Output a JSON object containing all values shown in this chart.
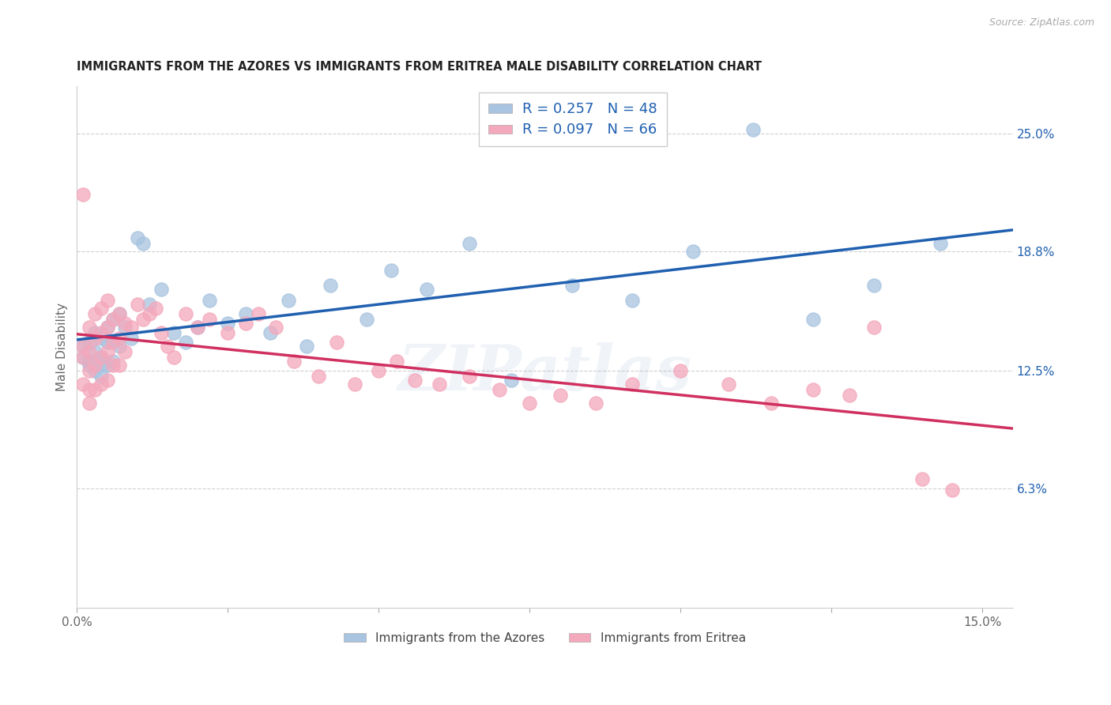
{
  "title": "IMMIGRANTS FROM THE AZORES VS IMMIGRANTS FROM ERITREA MALE DISABILITY CORRELATION CHART",
  "source": "Source: ZipAtlas.com",
  "ylabel": "Male Disability",
  "xlim": [
    0.0,
    0.155
  ],
  "ylim": [
    0.0,
    0.275
  ],
  "xticks": [
    0.0,
    0.025,
    0.05,
    0.075,
    0.1,
    0.125,
    0.15
  ],
  "xticklabels": [
    "0.0%",
    "",
    "",
    "",
    "",
    "",
    "15.0%"
  ],
  "yticks_right": [
    0.063,
    0.125,
    0.188,
    0.25
  ],
  "ytick_right_labels": [
    "6.3%",
    "12.5%",
    "18.8%",
    "25.0%"
  ],
  "azores_color": "#a8c4e0",
  "eritrea_color": "#f4a8bc",
  "azores_line_color": "#2060b0",
  "eritrea_line_color": "#d03060",
  "legend_R_color": "#2060b0",
  "legend_R_azores": "0.257",
  "legend_N_azores": "48",
  "legend_R_eritrea": "0.097",
  "legend_N_eritrea": "66",
  "watermark": "ZIPatlas",
  "azores_x": [
    0.001,
    0.001,
    0.002,
    0.002,
    0.002,
    0.003,
    0.003,
    0.003,
    0.004,
    0.004,
    0.004,
    0.004,
    0.005,
    0.005,
    0.005,
    0.006,
    0.006,
    0.006,
    0.007,
    0.007,
    0.008,
    0.009,
    0.01,
    0.011,
    0.012,
    0.014,
    0.016,
    0.018,
    0.02,
    0.022,
    0.025,
    0.028,
    0.032,
    0.035,
    0.038,
    0.042,
    0.048,
    0.052,
    0.058,
    0.065,
    0.072,
    0.082,
    0.092,
    0.102,
    0.112,
    0.122,
    0.132,
    0.143
  ],
  "azores_y": [
    0.132,
    0.138,
    0.13,
    0.14,
    0.128,
    0.145,
    0.135,
    0.125,
    0.142,
    0.132,
    0.128,
    0.122,
    0.148,
    0.14,
    0.128,
    0.152,
    0.14,
    0.13,
    0.155,
    0.138,
    0.148,
    0.142,
    0.195,
    0.192,
    0.16,
    0.168,
    0.145,
    0.14,
    0.148,
    0.162,
    0.15,
    0.155,
    0.145,
    0.162,
    0.138,
    0.17,
    0.152,
    0.178,
    0.168,
    0.192,
    0.12,
    0.17,
    0.162,
    0.188,
    0.252,
    0.152,
    0.17,
    0.192
  ],
  "eritrea_x": [
    0.001,
    0.001,
    0.001,
    0.001,
    0.002,
    0.002,
    0.002,
    0.002,
    0.002,
    0.003,
    0.003,
    0.003,
    0.003,
    0.004,
    0.004,
    0.004,
    0.004,
    0.005,
    0.005,
    0.005,
    0.005,
    0.006,
    0.006,
    0.006,
    0.007,
    0.007,
    0.007,
    0.008,
    0.008,
    0.009,
    0.01,
    0.011,
    0.012,
    0.013,
    0.014,
    0.015,
    0.016,
    0.018,
    0.02,
    0.022,
    0.025,
    0.028,
    0.03,
    0.033,
    0.036,
    0.04,
    0.043,
    0.046,
    0.05,
    0.053,
    0.056,
    0.06,
    0.065,
    0.07,
    0.075,
    0.08,
    0.086,
    0.092,
    0.1,
    0.108,
    0.115,
    0.122,
    0.128,
    0.132,
    0.14,
    0.145
  ],
  "eritrea_y": [
    0.218,
    0.138,
    0.132,
    0.118,
    0.148,
    0.135,
    0.125,
    0.115,
    0.108,
    0.155,
    0.142,
    0.128,
    0.115,
    0.158,
    0.145,
    0.132,
    0.118,
    0.162,
    0.148,
    0.135,
    0.12,
    0.152,
    0.14,
    0.128,
    0.155,
    0.142,
    0.128,
    0.15,
    0.135,
    0.148,
    0.16,
    0.152,
    0.155,
    0.158,
    0.145,
    0.138,
    0.132,
    0.155,
    0.148,
    0.152,
    0.145,
    0.15,
    0.155,
    0.148,
    0.13,
    0.122,
    0.14,
    0.118,
    0.125,
    0.13,
    0.12,
    0.118,
    0.122,
    0.115,
    0.108,
    0.112,
    0.108,
    0.118,
    0.125,
    0.118,
    0.108,
    0.115,
    0.112,
    0.148,
    0.068,
    0.062
  ]
}
